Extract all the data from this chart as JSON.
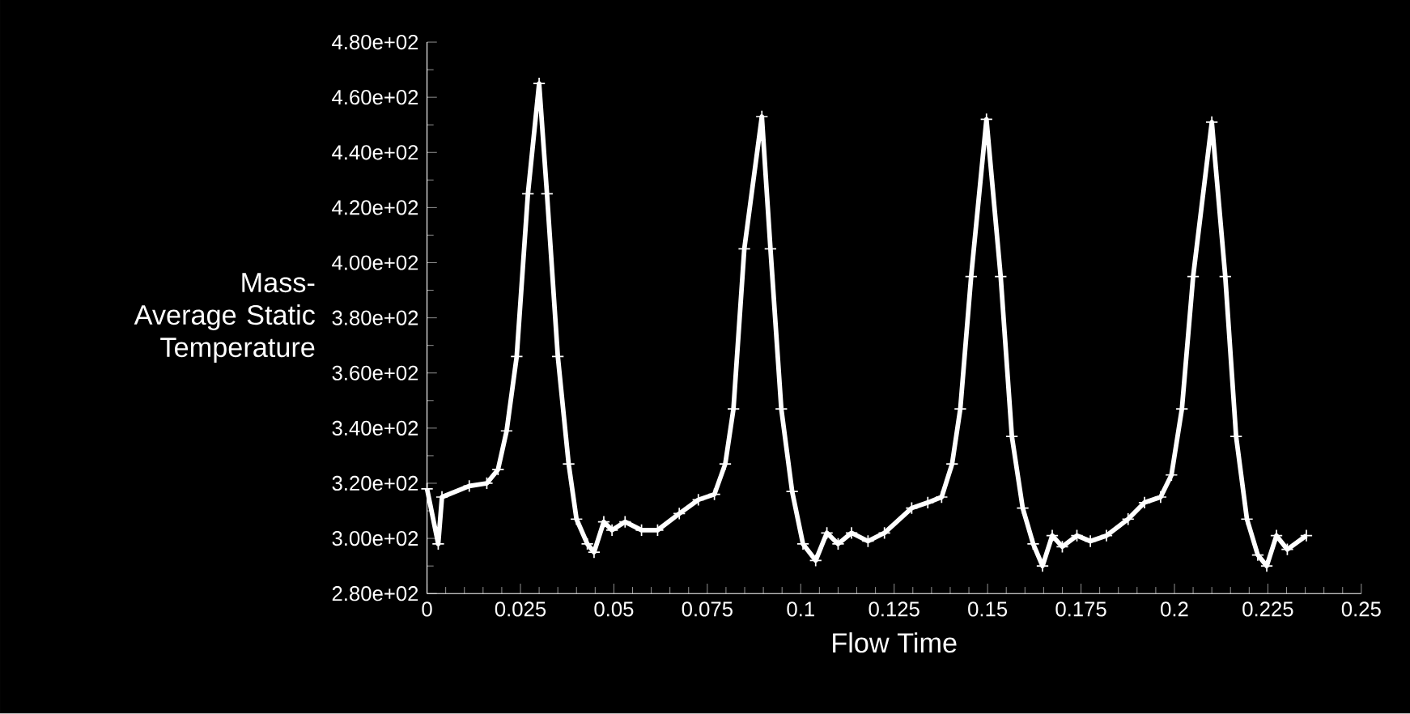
{
  "chart_data": {
    "type": "line",
    "xlabel": "Flow Time",
    "ylabel": "Mass-Average Static Temperature",
    "x": [
      0,
      0.003,
      0.004,
      0.0113,
      0.016,
      0.019,
      0.0213,
      0.024,
      0.027,
      0.03,
      0.0321,
      0.035,
      0.0379,
      0.04,
      0.0429,
      0.0447,
      0.0473,
      0.0495,
      0.053,
      0.0574,
      0.0617,
      0.0675,
      0.0726,
      0.0769,
      0.0798,
      0.082,
      0.0849,
      0.0896,
      0.0919,
      0.0948,
      0.0977,
      0.1006,
      0.104,
      0.107,
      0.11,
      0.1136,
      0.118,
      0.1224,
      0.1297,
      0.134,
      0.1377,
      0.1405,
      0.1427,
      0.1456,
      0.1497,
      0.1535,
      0.1565,
      0.1594,
      0.1622,
      0.1647,
      0.1673,
      0.17,
      0.1739,
      0.1775,
      0.1818,
      0.1876,
      0.192,
      0.1963,
      0.1992,
      0.202,
      0.205,
      0.21,
      0.2136,
      0.2165,
      0.2194,
      0.2223,
      0.2247,
      0.2273,
      0.2302,
      0.2353
    ],
    "series": [
      {
        "color": "#ffffff",
        "values": [
          318,
          298,
          315,
          319,
          320,
          325,
          339,
          366,
          425,
          465,
          425,
          366,
          327,
          307,
          298,
          295,
          306,
          303,
          306,
          303,
          303,
          309,
          314,
          316,
          327,
          347,
          405,
          453,
          405,
          347,
          317,
          298,
          292,
          302,
          298,
          302,
          299,
          302,
          311,
          313,
          315,
          327,
          347,
          395,
          452,
          395,
          337,
          311,
          298,
          290,
          301,
          297,
          301,
          299,
          301,
          307,
          313,
          315,
          323,
          347,
          395,
          451,
          395,
          337,
          307,
          294,
          290,
          301,
          296,
          301
        ]
      }
    ],
    "xlim": [
      0,
      0.25
    ],
    "xticks": [
      0,
      0.025,
      0.05,
      0.075,
      0.1,
      0.125,
      0.15,
      0.175,
      0.2,
      0.225,
      0.25
    ],
    "ylim": [
      280,
      480
    ],
    "yticks": [
      {
        "value": 280,
        "label": "2.80e+02"
      },
      {
        "value": 300,
        "label": "3.00e+02"
      },
      {
        "value": 320,
        "label": "3.20e+02"
      },
      {
        "value": 340,
        "label": "3.40e+02"
      },
      {
        "value": 360,
        "label": "3.60e+02"
      },
      {
        "value": 380,
        "label": "3.80e+02"
      },
      {
        "value": 400,
        "label": "4.00e+02"
      },
      {
        "value": 420,
        "label": "4.20e+02"
      },
      {
        "value": 440,
        "label": "4.40e+02"
      },
      {
        "value": 460,
        "label": "4.60e+02"
      },
      {
        "value": 480,
        "label": "4.80e+02"
      }
    ],
    "marker": "cross",
    "line_style": "solid"
  }
}
